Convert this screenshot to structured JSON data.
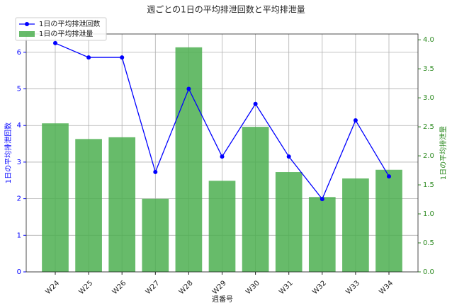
{
  "chart_data": {
    "type": "bar_line",
    "title": "週ごとの1日の平均排泄回数と平均排泄量",
    "x_label": "週番号",
    "y_label": "1日の平均排泄回数",
    "y2_label": "1日の平均排泄量",
    "categories": [
      "W24",
      "W25",
      "W26",
      "W27",
      "W28",
      "W29",
      "W30",
      "W31",
      "W32",
      "W33",
      "W34"
    ],
    "series": [
      {
        "name": "1日の平均排泄回数",
        "type": "line",
        "color": "#0000ff",
        "axis": "y",
        "values": [
          6.25,
          5.86,
          5.86,
          2.73,
          5.0,
          3.15,
          4.59,
          3.15,
          1.99,
          4.14,
          2.61
        ]
      },
      {
        "name": "1日の平均排泄量",
        "type": "bar",
        "color": "#4caf50",
        "axis": "y2",
        "values": [
          2.56,
          2.29,
          2.32,
          1.26,
          3.87,
          1.57,
          2.5,
          1.72,
          1.29,
          1.61,
          1.76
        ]
      }
    ],
    "ylim": [
      0,
      6.5
    ],
    "yticks": [
      0,
      1,
      2,
      3,
      4,
      5,
      6
    ],
    "y2lim": [
      0,
      4.1
    ],
    "y2ticks": [
      {
        "value": 0,
        "label": "0.0"
      },
      {
        "value": 0.5,
        "label": "0.5"
      },
      {
        "value": 1,
        "label": "1.0"
      },
      {
        "value": 1.5,
        "label": "1.5"
      },
      {
        "value": 2,
        "label": "2.0"
      },
      {
        "value": 2.5,
        "label": "2.5"
      },
      {
        "value": 3,
        "label": "3.0"
      },
      {
        "value": 3.5,
        "label": "3.5"
      },
      {
        "value": 4,
        "label": "4.0"
      }
    ],
    "grid": true,
    "legend": "upper left"
  }
}
